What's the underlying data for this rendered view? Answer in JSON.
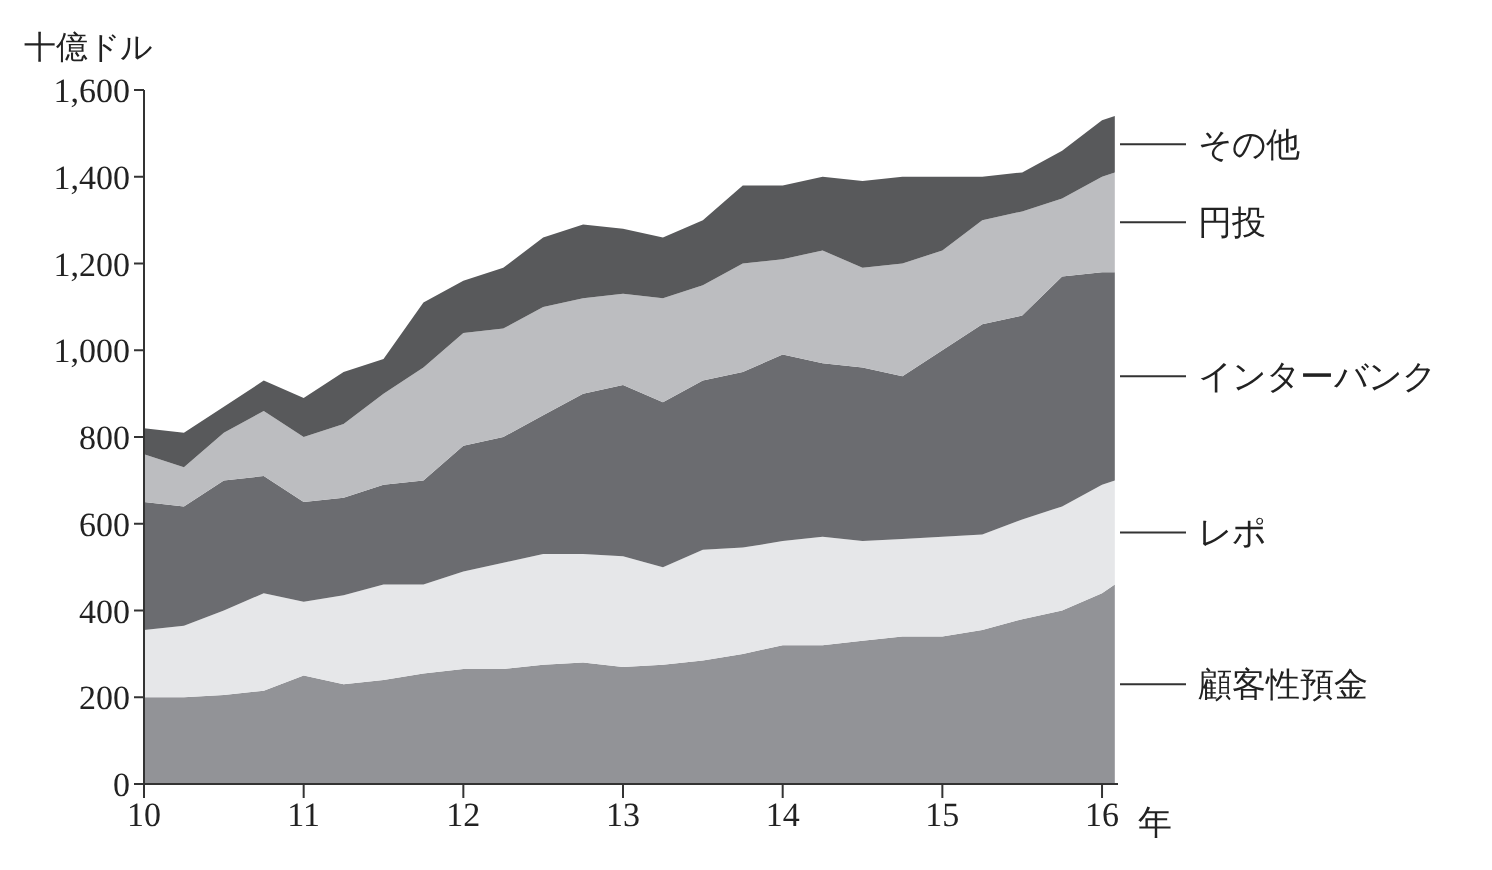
{
  "chart_data": {
    "type": "area",
    "stacked": true,
    "ylabel": "十億ドル",
    "xlabel": "年",
    "x": [
      10,
      10.25,
      10.5,
      10.75,
      11,
      11.25,
      11.5,
      11.75,
      12,
      12.25,
      12.5,
      12.75,
      13,
      13.25,
      13.5,
      13.75,
      14,
      14.25,
      14.5,
      14.75,
      15,
      15.25,
      15.5,
      15.75,
      16,
      16.08
    ],
    "series": [
      {
        "name": "顧客性預金",
        "color": "#929397",
        "values": [
          200,
          200,
          205,
          215,
          250,
          230,
          240,
          255,
          265,
          265,
          275,
          280,
          270,
          275,
          285,
          300,
          320,
          320,
          330,
          340,
          340,
          355,
          380,
          400,
          440,
          460
        ]
      },
      {
        "name": "レポ",
        "color": "#e6e7e9",
        "values": [
          155,
          165,
          195,
          225,
          170,
          205,
          220,
          205,
          225,
          245,
          255,
          250,
          255,
          225,
          255,
          245,
          240,
          250,
          230,
          225,
          230,
          220,
          230,
          240,
          250,
          240
        ]
      },
      {
        "name": "インターバンク",
        "color": "#6b6c70",
        "values": [
          295,
          275,
          300,
          270,
          230,
          225,
          230,
          240,
          290,
          290,
          320,
          370,
          395,
          380,
          390,
          405,
          430,
          400,
          400,
          375,
          430,
          485,
          470,
          530,
          490,
          480
        ]
      },
      {
        "name": "円投",
        "color": "#bcbdc0",
        "values": [
          110,
          90,
          110,
          150,
          150,
          170,
          210,
          260,
          260,
          250,
          250,
          220,
          210,
          240,
          220,
          250,
          220,
          260,
          230,
          260,
          230,
          240,
          240,
          180,
          220,
          230
        ]
      },
      {
        "name": "その他",
        "color": "#58595b",
        "values": [
          60,
          80,
          60,
          70,
          90,
          120,
          80,
          150,
          120,
          140,
          160,
          170,
          150,
          140,
          150,
          180,
          170,
          170,
          200,
          200,
          170,
          100,
          90,
          110,
          130,
          130
        ]
      }
    ],
    "xlim": [
      10,
      16.1
    ],
    "xticks": [
      10,
      11,
      12,
      13,
      14,
      15,
      16
    ],
    "ylim": [
      0,
      1600
    ],
    "yticks": [
      0,
      200,
      400,
      600,
      800,
      {
        "value": 1000,
        "label": "1,000"
      },
      {
        "value": 1200,
        "label": "1,200"
      },
      {
        "value": 1400,
        "label": "1,400"
      },
      {
        "value": 1600,
        "label": "1,600"
      }
    ],
    "grid": false,
    "legend": false
  }
}
